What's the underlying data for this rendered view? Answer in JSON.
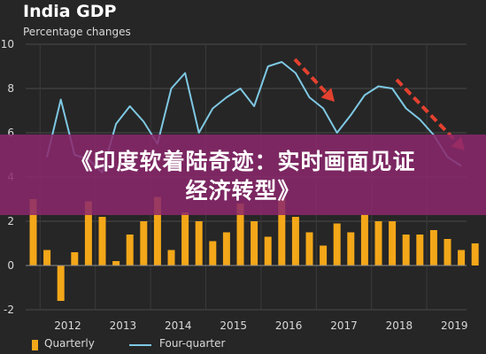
{
  "chart_data": {
    "type": "bar+line",
    "title": "India GDP",
    "subtitle": "Percentage changes",
    "ylim": [
      -2,
      10
    ],
    "yticks": [
      -2,
      0,
      2,
      4,
      6,
      8,
      10
    ],
    "xlabels": [
      "2012",
      "2013",
      "2014",
      "2015",
      "2016",
      "2017",
      "2018",
      "2019"
    ],
    "grid": true,
    "legend_position": "bottom",
    "series": [
      {
        "name": "Quarterly",
        "kind": "bar",
        "color": "#f3a719",
        "values": [
          3.0,
          0.7,
          -1.6,
          0.6,
          2.9,
          2.2,
          0.2,
          1.4,
          2.0,
          3.1,
          0.7,
          2.4,
          2.0,
          1.1,
          1.5,
          2.8,
          2.0,
          1.3,
          3.0,
          2.2,
          1.5,
          0.9,
          1.9,
          1.5,
          2.3,
          2.0,
          2.0,
          1.4,
          1.4,
          1.6,
          1.2,
          0.7,
          1.0
        ]
      },
      {
        "name": "Four-quarter",
        "kind": "line",
        "color": "#7ec8e3",
        "values": [
          4.9,
          7.5,
          5.0,
          4.8,
          4.2,
          6.4,
          7.2,
          6.5,
          5.5,
          8.0,
          8.7,
          6.0,
          7.1,
          7.6,
          8.0,
          7.2,
          9.0,
          9.2,
          8.7,
          7.6,
          7.1,
          6.0,
          6.8,
          7.7,
          8.1,
          8.0,
          7.1,
          6.6,
          5.9,
          4.9,
          4.5
        ]
      }
    ],
    "annotations": [
      "red dashed arrow pointing down-right",
      "red dashed arrow pointing down-right"
    ]
  },
  "banner": {
    "line1": "《印度软着陆奇迹：实时画面见证",
    "line2": "经济转型》"
  }
}
